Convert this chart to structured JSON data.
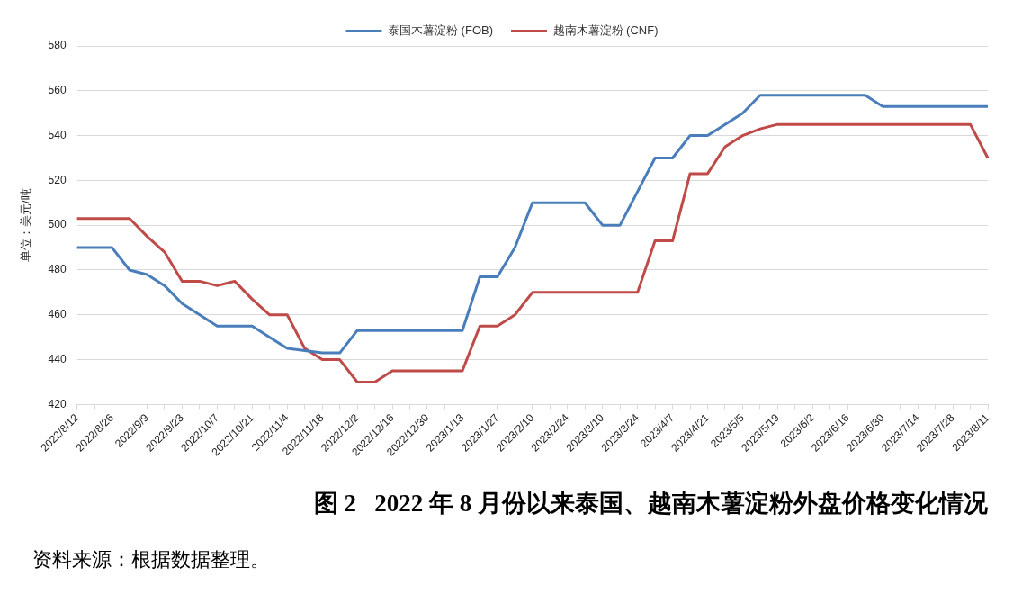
{
  "chart_data": {
    "type": "line",
    "title": "图 2   2022 年 8 月份以来泰国、越南木薯淀粉外盘价格变化情况",
    "ylabel": "单位：美元/吨",
    "annotations": [
      "资料来源：根据数据整理。"
    ],
    "categories": [
      "2022/8/12",
      null,
      "2022/8/26",
      null,
      "2022/9/9",
      null,
      "2022/9/23",
      null,
      "2022/10/7",
      null,
      "2022/10/21",
      null,
      "2022/11/4",
      null,
      "2022/11/18",
      null,
      "2022/12/2",
      null,
      "2022/12/16",
      null,
      "2022/12/30",
      null,
      "2023/1/13",
      null,
      "2023/1/27",
      null,
      "2023/2/10",
      null,
      "2023/2/24",
      null,
      "2023/3/10",
      null,
      "2023/3/24",
      null,
      "2023/4/7",
      null,
      "2023/4/21",
      null,
      "2023/5/5",
      null,
      "2023/5/19",
      null,
      "2023/6/2",
      null,
      "2023/6/16",
      null,
      "2023/6/30",
      null,
      "2023/7/14",
      null,
      "2023/7/28",
      null,
      "2023/8/11"
    ],
    "series": [
      {
        "name": "泰国木薯淀粉 (FOB)",
        "color": "#4a7ebb",
        "values": [
          490,
          490,
          490,
          480,
          478,
          473,
          465,
          460,
          455,
          455,
          455,
          450,
          445,
          444,
          443,
          443,
          453,
          453,
          453,
          453,
          453,
          453,
          453,
          477,
          477,
          490,
          510,
          510,
          510,
          510,
          500,
          500,
          515,
          530,
          530,
          540,
          540,
          545,
          550,
          558,
          558,
          558,
          558,
          558,
          558,
          558,
          553,
          553,
          553,
          553,
          553,
          553,
          553
        ]
      },
      {
        "name": "越南木薯淀粉 (CNF)",
        "color": "#be4b48",
        "values": [
          503,
          503,
          503,
          503,
          495,
          488,
          475,
          475,
          473,
          475,
          467,
          460,
          460,
          445,
          440,
          440,
          430,
          430,
          435,
          435,
          435,
          435,
          435,
          455,
          455,
          460,
          470,
          470,
          470,
          470,
          470,
          470,
          470,
          493,
          493,
          523,
          523,
          535,
          540,
          543,
          545,
          545,
          545,
          545,
          545,
          545,
          545,
          545,
          545,
          545,
          545,
          545,
          530
        ]
      }
    ],
    "ylim": [
      420,
      580
    ],
    "yticks": [
      420,
      440,
      460,
      480,
      500,
      520,
      540,
      560,
      580
    ],
    "grid": "y",
    "legend": "top",
    "marker": "none",
    "line_style": "solid"
  }
}
